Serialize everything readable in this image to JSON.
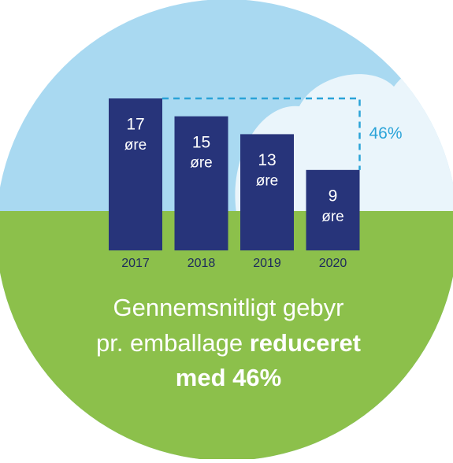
{
  "chart_data": {
    "type": "bar",
    "categories": [
      "2017",
      "2018",
      "2019",
      "2020"
    ],
    "values": [
      17,
      15,
      13,
      9
    ],
    "unit": "øre",
    "color": "#27347a",
    "annotation": "46%",
    "caption": {
      "regular": [
        "Gennemsnitligt gebyr",
        "pr. emballage"
      ],
      "bold": [
        "reduceret",
        "med 46%"
      ]
    }
  }
}
